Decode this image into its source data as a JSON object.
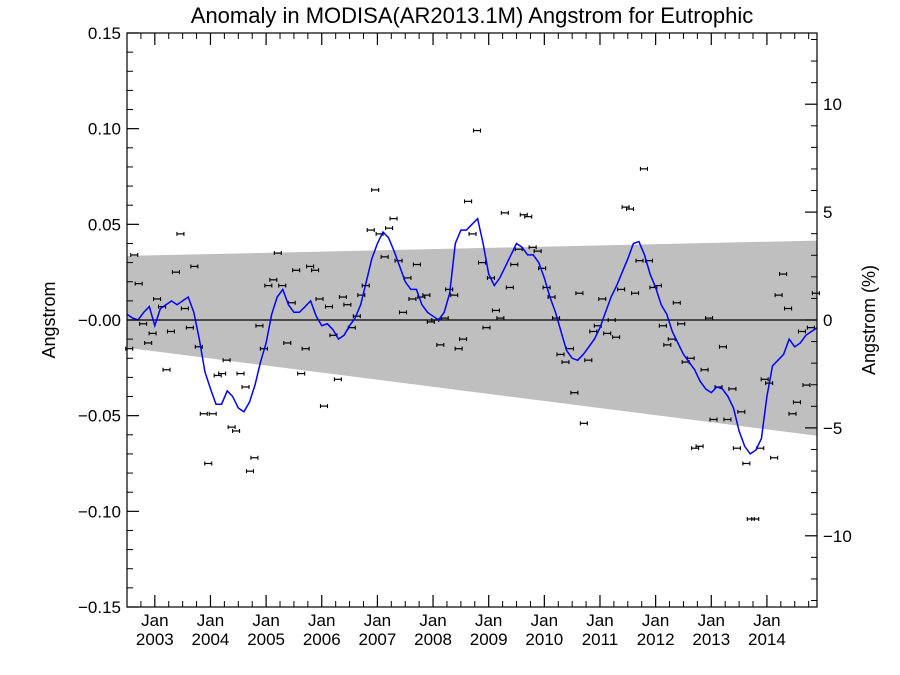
{
  "chart_data": {
    "type": "line",
    "title": "Anomaly in MODISA(AR2013.1M) Angstrom for Eutrophic",
    "ylabel": "Angstrom",
    "ylabel_right": "Angstrom (%)",
    "xlabel": "",
    "xlim": [
      2002.5,
      2014.9
    ],
    "ylim": [
      -0.15,
      0.15
    ],
    "ylim_right": [
      -13.3,
      13.3
    ],
    "y_ticks": [
      -0.15,
      -0.1,
      -0.05,
      0.0,
      0.05,
      0.1,
      0.15
    ],
    "y_tick_labels": [
      "−0.15",
      "−0.10",
      "−0.05",
      "−0.00",
      "0.05",
      "0.10",
      "0.15"
    ],
    "y_right_ticks": [
      -10,
      -5,
      0,
      5,
      10
    ],
    "y_right_tick_labels": [
      "−10",
      "−5",
      "0",
      "5",
      "10"
    ],
    "x_ticks": [
      {
        "x": 2003.0,
        "month": "Jan",
        "year": "2003"
      },
      {
        "x": 2004.0,
        "month": "Jan",
        "year": "2004"
      },
      {
        "x": 2005.0,
        "month": "Jan",
        "year": "2005"
      },
      {
        "x": 2006.0,
        "month": "Jan",
        "year": "2006"
      },
      {
        "x": 2007.0,
        "month": "Jan",
        "year": "2007"
      },
      {
        "x": 2008.0,
        "month": "Jan",
        "year": "2008"
      },
      {
        "x": 2009.0,
        "month": "Jan",
        "year": "2009"
      },
      {
        "x": 2010.0,
        "month": "Jan",
        "year": "2010"
      },
      {
        "x": 2011.0,
        "month": "Jan",
        "year": "2011"
      },
      {
        "x": 2012.0,
        "month": "Jan",
        "year": "2012"
      },
      {
        "x": 2013.0,
        "month": "Jan",
        "year": "2013"
      },
      {
        "x": 2014.0,
        "month": "Jan",
        "year": "2014"
      }
    ],
    "grid": false,
    "legend": "none",
    "colors": {
      "smooth_line": "#0000ff",
      "band": "#bfbfbf",
      "points": "#000000",
      "zero_line": "#000000"
    },
    "band": {
      "x": [
        2002.5,
        2014.9
      ],
      "upper": [
        0.0335,
        0.0415
      ],
      "lower": [
        -0.0145,
        -0.0605
      ]
    },
    "zero_line": 0.0,
    "monthly_anomalies": [
      {
        "x": 2002.54,
        "y": -0.015
      },
      {
        "x": 2002.63,
        "y": 0.034
      },
      {
        "x": 2002.71,
        "y": 0.019
      },
      {
        "x": 2002.79,
        "y": -0.002
      },
      {
        "x": 2002.88,
        "y": -0.012
      },
      {
        "x": 2002.96,
        "y": -0.007
      },
      {
        "x": 2003.04,
        "y": 0.011
      },
      {
        "x": 2003.13,
        "y": 0.007
      },
      {
        "x": 2003.21,
        "y": -0.026
      },
      {
        "x": 2003.29,
        "y": -0.006
      },
      {
        "x": 2003.38,
        "y": 0.025
      },
      {
        "x": 2003.46,
        "y": 0.045
      },
      {
        "x": 2003.54,
        "y": 0.006
      },
      {
        "x": 2003.63,
        "y": -0.004
      },
      {
        "x": 2003.71,
        "y": 0.028
      },
      {
        "x": 2003.79,
        "y": -0.014
      },
      {
        "x": 2003.88,
        "y": -0.049
      },
      {
        "x": 2003.96,
        "y": -0.075
      },
      {
        "x": 2004.04,
        "y": -0.049
      },
      {
        "x": 2004.13,
        "y": -0.029
      },
      {
        "x": 2004.21,
        "y": -0.028
      },
      {
        "x": 2004.29,
        "y": -0.021
      },
      {
        "x": 2004.38,
        "y": -0.056
      },
      {
        "x": 2004.46,
        "y": -0.058
      },
      {
        "x": 2004.54,
        "y": -0.028
      },
      {
        "x": 2004.63,
        "y": -0.035
      },
      {
        "x": 2004.71,
        "y": -0.079
      },
      {
        "x": 2004.79,
        "y": -0.072
      },
      {
        "x": 2004.88,
        "y": -0.003
      },
      {
        "x": 2004.96,
        "y": -0.015
      },
      {
        "x": 2005.04,
        "y": 0.018
      },
      {
        "x": 2005.13,
        "y": 0.021
      },
      {
        "x": 2005.21,
        "y": 0.035
      },
      {
        "x": 2005.29,
        "y": 0.018
      },
      {
        "x": 2005.38,
        "y": -0.012
      },
      {
        "x": 2005.46,
        "y": 0.009
      },
      {
        "x": 2005.54,
        "y": 0.026
      },
      {
        "x": 2005.63,
        "y": -0.028
      },
      {
        "x": 2005.71,
        "y": -0.015
      },
      {
        "x": 2005.79,
        "y": 0.028
      },
      {
        "x": 2005.88,
        "y": 0.026
      },
      {
        "x": 2005.96,
        "y": 0.011
      },
      {
        "x": 2006.04,
        "y": -0.045
      },
      {
        "x": 2006.13,
        "y": 0.007
      },
      {
        "x": 2006.21,
        "y": -0.008
      },
      {
        "x": 2006.29,
        "y": -0.031
      },
      {
        "x": 2006.38,
        "y": 0.012
      },
      {
        "x": 2006.46,
        "y": 0.008
      },
      {
        "x": 2006.54,
        "y": -0.004
      },
      {
        "x": 2006.63,
        "y": 0.002
      },
      {
        "x": 2006.71,
        "y": 0.013
      },
      {
        "x": 2006.79,
        "y": 0.018
      },
      {
        "x": 2006.88,
        "y": 0.047
      },
      {
        "x": 2006.96,
        "y": 0.068
      },
      {
        "x": 2007.04,
        "y": 0.045
      },
      {
        "x": 2007.13,
        "y": 0.033
      },
      {
        "x": 2007.21,
        "y": 0.048
      },
      {
        "x": 2007.29,
        "y": 0.053
      },
      {
        "x": 2007.38,
        "y": 0.031
      },
      {
        "x": 2007.46,
        "y": 0.004
      },
      {
        "x": 2007.54,
        "y": 0.022
      },
      {
        "x": 2007.63,
        "y": 0.011
      },
      {
        "x": 2007.71,
        "y": 0.029
      },
      {
        "x": 2007.79,
        "y": 0.012
      },
      {
        "x": 2007.88,
        "y": 0.013
      },
      {
        "x": 2007.96,
        "y": -0.001
      },
      {
        "x": 2008.04,
        "y": 0.0
      },
      {
        "x": 2008.13,
        "y": -0.013
      },
      {
        "x": 2008.21,
        "y": 0.001
      },
      {
        "x": 2008.29,
        "y": 0.016
      },
      {
        "x": 2008.38,
        "y": 0.013
      },
      {
        "x": 2008.46,
        "y": -0.015
      },
      {
        "x": 2008.54,
        "y": -0.01
      },
      {
        "x": 2008.63,
        "y": 0.062
      },
      {
        "x": 2008.71,
        "y": 0.045
      },
      {
        "x": 2008.79,
        "y": 0.099
      },
      {
        "x": 2008.88,
        "y": 0.03
      },
      {
        "x": 2008.96,
        "y": -0.004
      },
      {
        "x": 2009.04,
        "y": 0.022
      },
      {
        "x": 2009.13,
        "y": 0.005
      },
      {
        "x": 2009.21,
        "y": 0.001
      },
      {
        "x": 2009.29,
        "y": 0.056
      },
      {
        "x": 2009.38,
        "y": 0.017
      },
      {
        "x": 2009.46,
        "y": 0.029
      },
      {
        "x": 2009.54,
        "y": 0.037
      },
      {
        "x": 2009.63,
        "y": 0.055
      },
      {
        "x": 2009.71,
        "y": 0.054
      },
      {
        "x": 2009.79,
        "y": 0.038
      },
      {
        "x": 2009.88,
        "y": 0.036
      },
      {
        "x": 2009.96,
        "y": 0.027
      },
      {
        "x": 2010.04,
        "y": 0.017
      },
      {
        "x": 2010.13,
        "y": 0.012
      },
      {
        "x": 2010.21,
        "y": 0.001
      },
      {
        "x": 2010.29,
        "y": -0.018
      },
      {
        "x": 2010.38,
        "y": -0.022
      },
      {
        "x": 2010.46,
        "y": -0.015
      },
      {
        "x": 2010.54,
        "y": -0.038
      },
      {
        "x": 2010.63,
        "y": 0.014
      },
      {
        "x": 2010.71,
        "y": -0.054
      },
      {
        "x": 2010.79,
        "y": -0.021
      },
      {
        "x": 2010.88,
        "y": -0.006
      },
      {
        "x": 2010.96,
        "y": -0.003
      },
      {
        "x": 2011.04,
        "y": 0.011
      },
      {
        "x": 2011.13,
        "y": -0.007
      },
      {
        "x": 2011.21,
        "y": 0.0
      },
      {
        "x": 2011.29,
        "y": -0.009
      },
      {
        "x": 2011.38,
        "y": 0.016
      },
      {
        "x": 2011.46,
        "y": 0.059
      },
      {
        "x": 2011.54,
        "y": 0.058
      },
      {
        "x": 2011.63,
        "y": 0.014
      },
      {
        "x": 2011.71,
        "y": 0.031
      },
      {
        "x": 2011.79,
        "y": 0.079
      },
      {
        "x": 2011.88,
        "y": 0.031
      },
      {
        "x": 2011.96,
        "y": 0.017
      },
      {
        "x": 2012.04,
        "y": 0.018
      },
      {
        "x": 2012.13,
        "y": -0.003
      },
      {
        "x": 2012.21,
        "y": -0.013
      },
      {
        "x": 2012.29,
        "y": -0.01
      },
      {
        "x": 2012.38,
        "y": 0.009
      },
      {
        "x": 2012.46,
        "y": -0.002
      },
      {
        "x": 2012.54,
        "y": -0.022
      },
      {
        "x": 2012.63,
        "y": -0.02
      },
      {
        "x": 2012.71,
        "y": -0.067
      },
      {
        "x": 2012.79,
        "y": -0.066
      },
      {
        "x": 2012.88,
        "y": -0.026
      },
      {
        "x": 2012.96,
        "y": 0.001
      },
      {
        "x": 2013.04,
        "y": -0.052
      },
      {
        "x": 2013.13,
        "y": -0.035
      },
      {
        "x": 2013.21,
        "y": -0.014
      },
      {
        "x": 2013.29,
        "y": -0.052
      },
      {
        "x": 2013.38,
        "y": -0.036
      },
      {
        "x": 2013.46,
        "y": -0.067
      },
      {
        "x": 2013.54,
        "y": -0.048
      },
      {
        "x": 2013.63,
        "y": -0.075
      },
      {
        "x": 2013.71,
        "y": -0.104
      },
      {
        "x": 2013.79,
        "y": -0.104
      },
      {
        "x": 2013.88,
        "y": -0.067
      },
      {
        "x": 2013.96,
        "y": -0.031
      },
      {
        "x": 2014.04,
        "y": -0.033
      },
      {
        "x": 2014.13,
        "y": -0.072
      },
      {
        "x": 2014.21,
        "y": 0.013
      },
      {
        "x": 2014.29,
        "y": 0.024
      },
      {
        "x": 2014.38,
        "y": 0.006
      },
      {
        "x": 2014.46,
        "y": -0.049
      },
      {
        "x": 2014.54,
        "y": -0.043
      },
      {
        "x": 2014.63,
        "y": -0.006
      },
      {
        "x": 2014.71,
        "y": -0.034
      },
      {
        "x": 2014.79,
        "y": -0.004
      },
      {
        "x": 2014.88,
        "y": 0.014
      }
    ],
    "smoothed": {
      "x": [
        2002.5,
        2002.6,
        2002.7,
        2002.8,
        2002.9,
        2003.0,
        2003.1,
        2003.2,
        2003.3,
        2003.4,
        2003.5,
        2003.6,
        2003.7,
        2003.8,
        2003.9,
        2004.0,
        2004.1,
        2004.2,
        2004.3,
        2004.4,
        2004.5,
        2004.6,
        2004.7,
        2004.8,
        2004.9,
        2005.0,
        2005.1,
        2005.2,
        2005.3,
        2005.4,
        2005.5,
        2005.6,
        2005.7,
        2005.8,
        2005.9,
        2006.0,
        2006.1,
        2006.2,
        2006.3,
        2006.4,
        2006.5,
        2006.6,
        2006.7,
        2006.8,
        2006.9,
        2007.0,
        2007.1,
        2007.2,
        2007.3,
        2007.4,
        2007.5,
        2007.6,
        2007.7,
        2007.8,
        2007.9,
        2008.0,
        2008.1,
        2008.2,
        2008.3,
        2008.4,
        2008.5,
        2008.6,
        2008.7,
        2008.8,
        2008.9,
        2009.0,
        2009.1,
        2009.2,
        2009.3,
        2009.4,
        2009.5,
        2009.6,
        2009.7,
        2009.8,
        2009.9,
        2010.0,
        2010.1,
        2010.2,
        2010.3,
        2010.4,
        2010.5,
        2010.6,
        2010.7,
        2010.8,
        2010.9,
        2011.0,
        2011.1,
        2011.2,
        2011.3,
        2011.4,
        2011.5,
        2011.6,
        2011.7,
        2011.8,
        2011.9,
        2012.0,
        2012.1,
        2012.2,
        2012.3,
        2012.4,
        2012.5,
        2012.6,
        2012.7,
        2012.8,
        2012.9,
        2013.0,
        2013.1,
        2013.2,
        2013.3,
        2013.4,
        2013.5,
        2013.6,
        2013.7,
        2013.8,
        2013.9,
        2014.0,
        2014.1,
        2014.2,
        2014.3,
        2014.4,
        2014.5,
        2014.6,
        2014.7,
        2014.8,
        2014.9
      ],
      "y": [
        0.003,
        0.001,
        0.0,
        0.004,
        0.007,
        -0.003,
        0.006,
        0.008,
        0.01,
        0.008,
        0.01,
        0.012,
        0.004,
        -0.01,
        -0.027,
        -0.036,
        -0.044,
        -0.044,
        -0.037,
        -0.04,
        -0.046,
        -0.048,
        -0.043,
        -0.034,
        -0.022,
        -0.012,
        0.003,
        0.012,
        0.016,
        0.008,
        0.004,
        0.004,
        0.007,
        0.01,
        0.002,
        -0.003,
        -0.002,
        -0.005,
        -0.01,
        -0.008,
        -0.003,
        0.001,
        0.008,
        0.02,
        0.032,
        0.04,
        0.046,
        0.043,
        0.036,
        0.028,
        0.02,
        0.016,
        0.016,
        0.008,
        0.004,
        0.002,
        0.0,
        0.004,
        0.014,
        0.04,
        0.047,
        0.047,
        0.05,
        0.053,
        0.04,
        0.024,
        0.018,
        0.022,
        0.028,
        0.034,
        0.04,
        0.038,
        0.034,
        0.034,
        0.03,
        0.022,
        0.012,
        0.004,
        -0.006,
        -0.016,
        -0.02,
        -0.021,
        -0.018,
        -0.014,
        -0.01,
        -0.004,
        0.004,
        0.012,
        0.018,
        0.025,
        0.032,
        0.04,
        0.041,
        0.034,
        0.024,
        0.017,
        0.008,
        0.003,
        -0.006,
        -0.012,
        -0.018,
        -0.022,
        -0.026,
        -0.032,
        -0.036,
        -0.038,
        -0.035,
        -0.036,
        -0.04,
        -0.046,
        -0.058,
        -0.066,
        -0.07,
        -0.068,
        -0.062,
        -0.04,
        -0.024,
        -0.021,
        -0.018,
        -0.01,
        -0.014,
        -0.012,
        -0.008,
        -0.006,
        -0.004
      ]
    }
  }
}
